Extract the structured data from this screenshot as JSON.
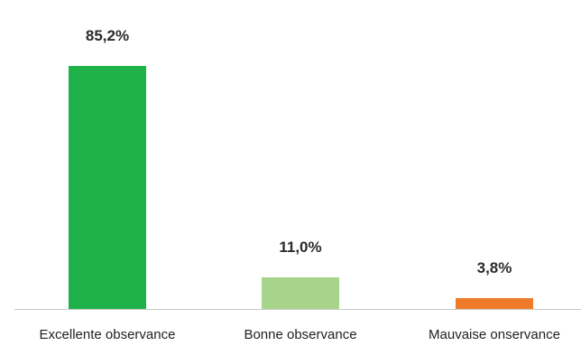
{
  "chart_data": {
    "type": "bar",
    "categories": [
      "Excellente observance",
      "Bonne observance",
      "Mauvaise onservance"
    ],
    "values": [
      85.2,
      11.0,
      3.8
    ],
    "data_labels": [
      "85,2%",
      "11,0%",
      "3,8%"
    ],
    "colors": [
      "#1fb24a",
      "#a6d48a",
      "#ee7a2a"
    ],
    "baseline_color": "#c8c8c8",
    "title": "",
    "xlabel": "",
    "ylabel": "",
    "ylim": [
      0,
      85.2
    ],
    "grid": false,
    "legend": "none"
  }
}
